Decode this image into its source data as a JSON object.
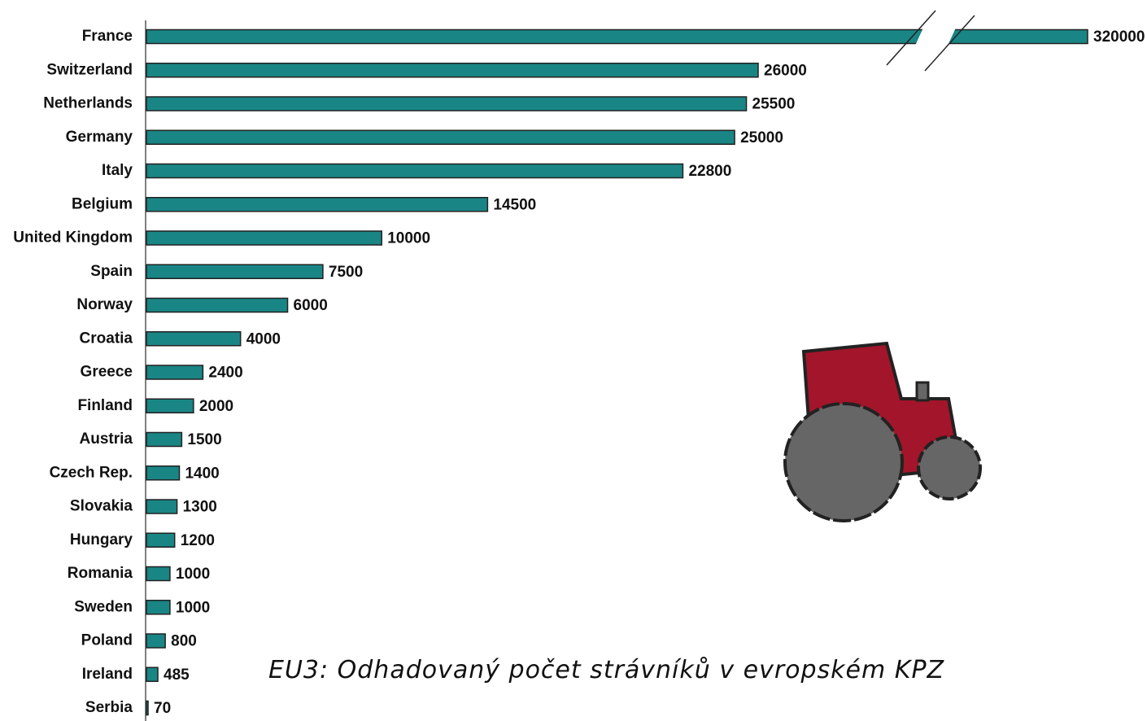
{
  "chart_data": {
    "type": "bar",
    "orientation": "horizontal",
    "title": "EU3: Odhadovaný počet strávníků v evropském KPZ",
    "categories": [
      "France",
      "Switzerland",
      "Netherlands",
      "Germany",
      "Italy",
      "Belgium",
      "United Kingdom",
      "Spain",
      "Norway",
      "Croatia",
      "Greece",
      "Finland",
      "Austria",
      "Czech Rep.",
      "Slovakia",
      "Hungary",
      "Romania",
      "Sweden",
      "Poland",
      "Ireland",
      "Serbia"
    ],
    "values": [
      320000,
      26000,
      25500,
      25000,
      22800,
      14500,
      10000,
      7500,
      6000,
      4000,
      2400,
      2000,
      1500,
      1400,
      1300,
      1200,
      1000,
      1000,
      800,
      485,
      70
    ],
    "color": "#1a8585",
    "axis_break": true
  }
}
